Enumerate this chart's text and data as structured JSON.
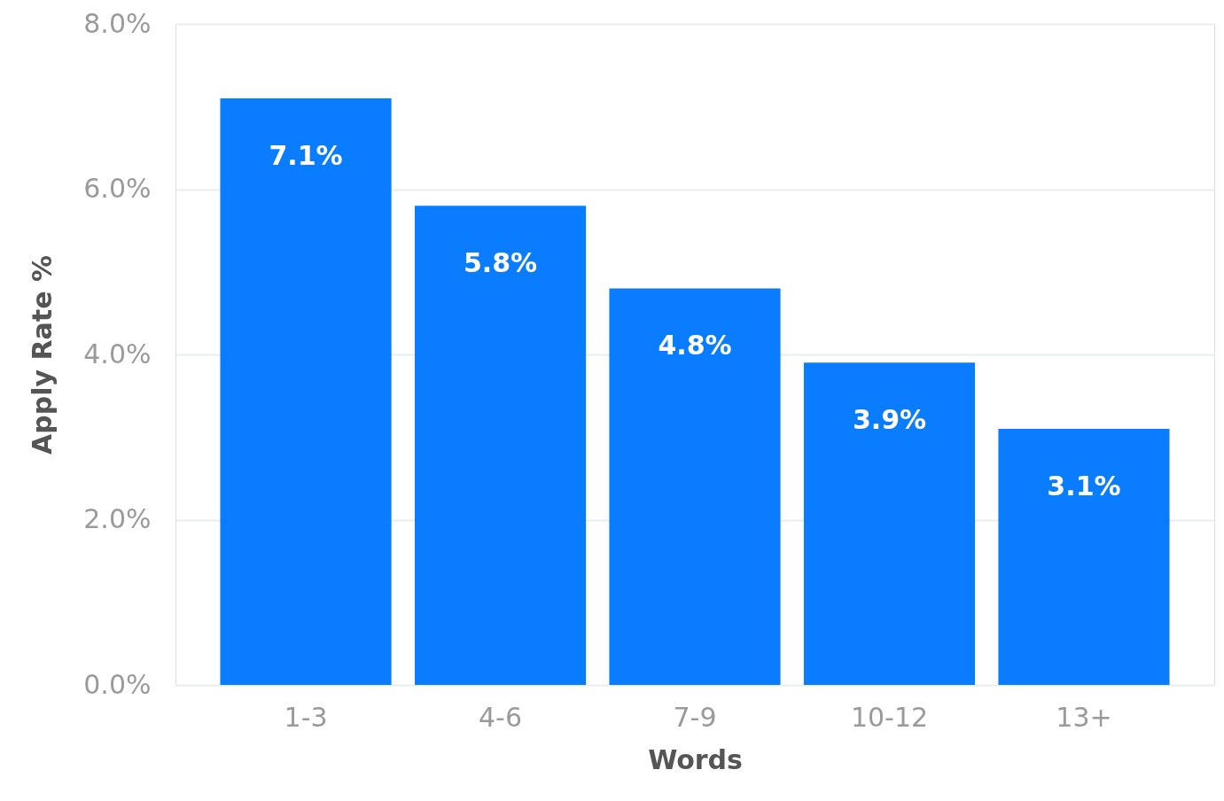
{
  "chart_data": {
    "type": "bar",
    "xlabel": "Words",
    "ylabel": "Apply Rate %",
    "categories": [
      "1-3",
      "4-6",
      "7-9",
      "10-12",
      "13+"
    ],
    "values": [
      7.1,
      5.8,
      4.8,
      3.9,
      3.1
    ],
    "value_labels": [
      "7.1%",
      "5.8%",
      "4.8%",
      "3.9%",
      "3.1%"
    ],
    "color": "#0a7cff",
    "ylim": [
      0,
      8
    ],
    "yticks": [
      {
        "value": 0,
        "label": "0.0%"
      },
      {
        "value": 2,
        "label": "2.0%"
      },
      {
        "value": 4,
        "label": "4.0%"
      },
      {
        "value": 6,
        "label": "6.0%"
      },
      {
        "value": 8,
        "label": "8.0%"
      }
    ],
    "grid": "y"
  }
}
